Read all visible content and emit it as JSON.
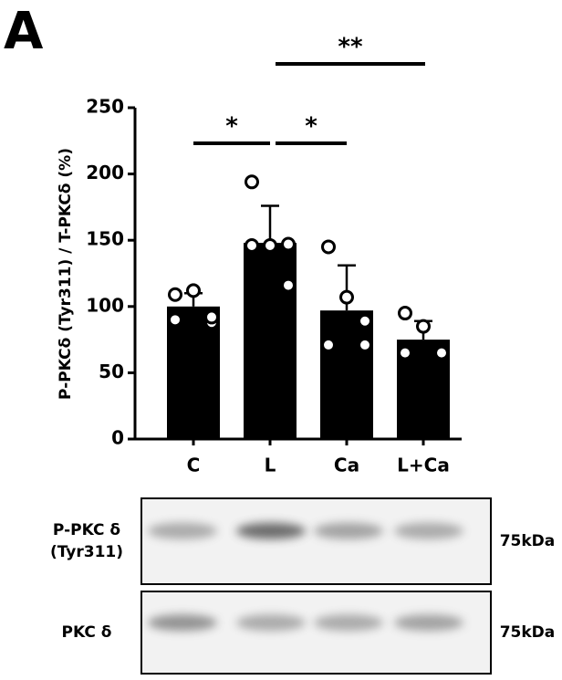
{
  "panel_label": "A",
  "chart_data": {
    "type": "bar",
    "ylabel": "P-PKCδ (Tyr311) / T-PKCδ (%)",
    "categories": [
      "C",
      "L",
      "Ca",
      "L+Ca"
    ],
    "values": [
      100,
      148,
      97,
      75
    ],
    "errors": [
      10,
      28,
      34,
      14
    ],
    "points": [
      [
        109,
        112,
        88,
        90,
        92
      ],
      [
        194,
        146,
        147,
        146,
        116
      ],
      [
        145,
        107,
        89,
        71,
        71
      ],
      [
        95,
        85,
        65,
        65,
        65
      ]
    ],
    "color": "#000000",
    "ylim": [
      0,
      250
    ],
    "yticks": [
      0,
      50,
      100,
      150,
      200,
      250
    ],
    "significance": [
      {
        "label": "*",
        "pair": [
          "C",
          "L"
        ]
      },
      {
        "label": "*",
        "pair": [
          "L",
          "Ca"
        ]
      },
      {
        "label": "**",
        "pair": [
          "L",
          "L+Ca"
        ]
      }
    ]
  },
  "blots": [
    {
      "label_lines": [
        "P-PKC δ",
        "(Tyr311)"
      ],
      "size": "75kDa"
    },
    {
      "label_lines": [
        "PKC δ"
      ],
      "size": "75kDa"
    }
  ]
}
